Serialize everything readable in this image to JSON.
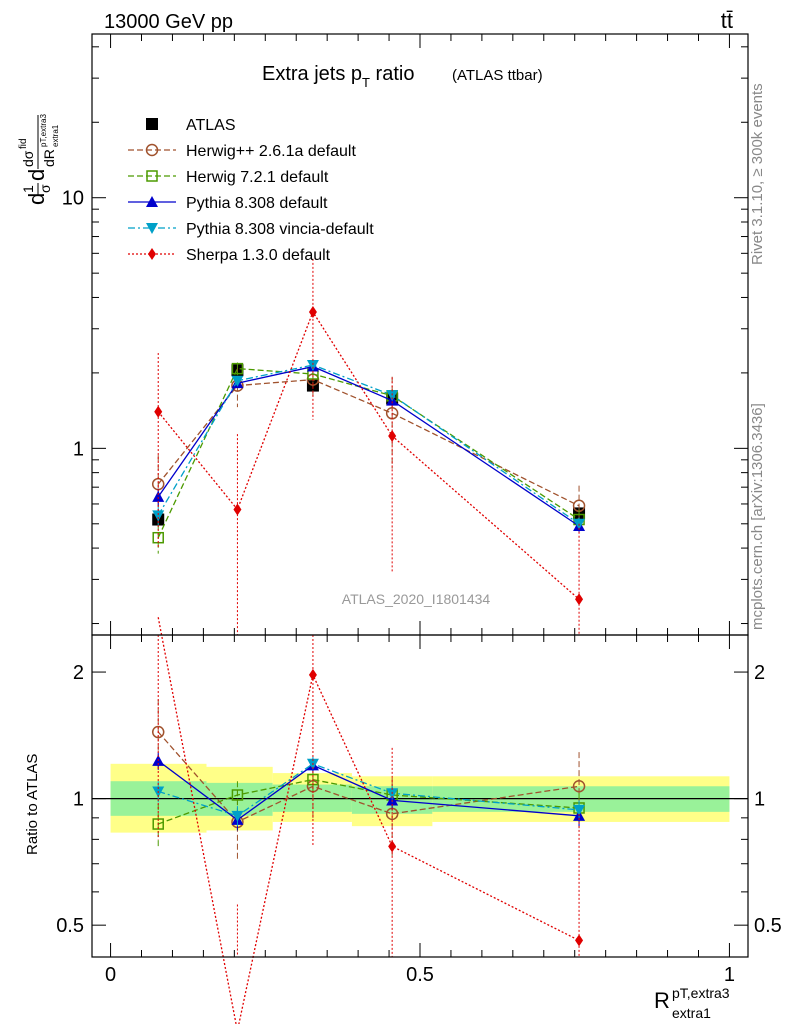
{
  "header": {
    "left": "13000 GeV pp",
    "right": "tt̄"
  },
  "side_labels": {
    "rivet": "Rivet 3.1.10, ≥ 300k events",
    "mcplots": "mcplots.cern.ch [arXiv:1306.3436]"
  },
  "watermark": "ATLAS_2020_I1801434",
  "chart_data": [
    {
      "type": "line",
      "panel": "main",
      "title": "Extra jets p",
      "title_sub": "T",
      "title_tail": " ratio",
      "title_note": "(ATLAS ttbar)",
      "ylabel": "1/σ dσ^fid / dR^pT,extra3_extra1",
      "yscale": "log",
      "ylim": [
        0.18,
        45
      ],
      "xlim": [
        -0.03,
        1.03
      ],
      "yticks": [
        {
          "v": 1,
          "label": "1"
        },
        {
          "v": 10,
          "label": "10"
        }
      ],
      "x": [
        0.077,
        0.205,
        0.327,
        0.455,
        0.757
      ],
      "series": [
        {
          "name": "ATLAS",
          "color": "#000000",
          "marker": "square",
          "dash": "",
          "values": [
            0.52,
            2.05,
            1.78,
            1.58,
            0.55
          ],
          "err": [
            0.0,
            0.0,
            0.0,
            0.0,
            0.0
          ]
        },
        {
          "name": "Herwig++ 2.6.1a default",
          "color": "#a0522d",
          "marker": "circle-open",
          "dash": "6,3",
          "values": [
            0.72,
            1.78,
            1.88,
            1.38,
            0.59
          ],
          "err": [
            0.22,
            0.32,
            0.3,
            0.55,
            0.12
          ]
        },
        {
          "name": "Herwig 7.2.1 default",
          "color": "#4c9a00",
          "marker": "square-open",
          "dash": "6,3",
          "values": [
            0.44,
            2.08,
            1.98,
            1.62,
            0.52
          ],
          "err": [
            0.06,
            0.12,
            0.12,
            0.1,
            0.05
          ]
        },
        {
          "name": "Pythia 8.308 default",
          "color": "#0000cc",
          "marker": "triangle-up",
          "dash": "",
          "values": [
            0.64,
            1.82,
            2.12,
            1.55,
            0.49
          ],
          "err": [
            0.05,
            0.08,
            0.08,
            0.07,
            0.03
          ]
        },
        {
          "name": "Pythia 8.308 vincia-default",
          "color": "#00a0c8",
          "marker": "triangle-down",
          "dash": "7,3,2,3",
          "values": [
            0.54,
            1.86,
            2.15,
            1.63,
            0.5
          ],
          "err": [
            0.05,
            0.08,
            0.08,
            0.07,
            0.03
          ]
        },
        {
          "name": "Sherpa 1.3.0 default",
          "color": "#e00000",
          "marker": "diamond",
          "dash": "2,2",
          "values": [
            1.4,
            0.57,
            3.5,
            1.12,
            0.25
          ],
          "err": [
            1.0,
            0.57,
            2.2,
            0.8,
            0.25
          ]
        }
      ]
    },
    {
      "type": "line",
      "panel": "ratio",
      "ylabel": "Ratio to ATLAS",
      "yscale": "log",
      "ylim": [
        0.42,
        2.45
      ],
      "xlabel": "R",
      "xlabel_sup": "pT,extra3",
      "xlabel_sub": "extra1",
      "xticks": [
        {
          "v": 0,
          "label": "0"
        },
        {
          "v": 0.5,
          "label": "0.5"
        },
        {
          "v": 1,
          "label": "1"
        }
      ],
      "yticks": [
        {
          "v": 0.5,
          "label": "0.5"
        },
        {
          "v": 1,
          "label": "1"
        },
        {
          "v": 2,
          "label": "2"
        }
      ],
      "bands": [
        {
          "x0": 0.0,
          "x1": 0.155,
          "inner": [
            0.91,
            1.1
          ],
          "outer": [
            0.83,
            1.21
          ]
        },
        {
          "x0": 0.155,
          "x1": 0.262,
          "inner": [
            0.91,
            1.09
          ],
          "outer": [
            0.84,
            1.19
          ]
        },
        {
          "x0": 0.262,
          "x1": 0.39,
          "inner": [
            0.93,
            1.08
          ],
          "outer": [
            0.88,
            1.15
          ]
        },
        {
          "x0": 0.39,
          "x1": 0.52,
          "inner": [
            0.92,
            1.07
          ],
          "outer": [
            0.86,
            1.13
          ]
        },
        {
          "x0": 0.52,
          "x1": 1.0,
          "inner": [
            0.93,
            1.07
          ],
          "outer": [
            0.88,
            1.13
          ]
        }
      ],
      "series": [
        {
          "name": "Herwig++ 2.6.1a default",
          "values": [
            1.44,
            0.88,
            1.07,
            0.92,
            1.07
          ],
          "err": [
            0.28,
            0.17,
            0.18,
            0.2,
            0.22
          ]
        },
        {
          "name": "Herwig 7.2.1 default",
          "values": [
            0.87,
            1.02,
            1.11,
            1.02,
            0.95
          ],
          "err": [
            0.1,
            0.08,
            0.07,
            0.06,
            0.08
          ]
        },
        {
          "name": "Pythia 8.308 default",
          "values": [
            1.23,
            0.89,
            1.2,
            0.99,
            0.91
          ],
          "err": [
            0.06,
            0.05,
            0.05,
            0.05,
            0.05
          ]
        },
        {
          "name": "Pythia 8.308 vincia-default",
          "values": [
            1.04,
            0.91,
            1.21,
            1.03,
            0.94
          ],
          "err": [
            0.06,
            0.05,
            0.05,
            0.05,
            0.05
          ]
        },
        {
          "name": "Sherpa 1.3.0 default",
          "values": [
            2.7,
            0.28,
            1.97,
            0.77,
            0.46
          ],
          "err": [
            1.9,
            0.28,
            1.2,
            0.55,
            0.46
          ]
        }
      ]
    }
  ]
}
